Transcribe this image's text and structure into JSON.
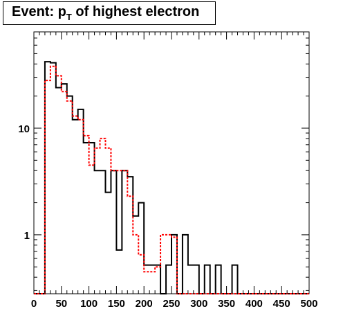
{
  "chart_data": {
    "type": "histogram",
    "title": {
      "prefix": "Event: p",
      "subscript": "T",
      "suffix": " of highest electron"
    },
    "xlabel": "",
    "ylabel": "",
    "xlim": [
      0,
      500
    ],
    "ylim": [
      0.28,
      80
    ],
    "yscale": "log",
    "bin_width": 10,
    "x_ticks": [
      0,
      50,
      100,
      150,
      200,
      250,
      300,
      350,
      400,
      450,
      500
    ],
    "x_tick_labels": [
      "0",
      "50",
      "100",
      "150",
      "200",
      "250",
      "300",
      "350",
      "400",
      "450",
      "500"
    ],
    "y_ticks": [
      1,
      10
    ],
    "y_tick_labels": [
      "1",
      "10"
    ],
    "series": [
      {
        "style": "solid",
        "color": "#000000",
        "values": [
          0,
          0,
          42,
          41,
          24,
          26,
          20,
          12,
          15,
          7.3,
          7.3,
          4,
          4,
          2.5,
          4,
          0.72,
          4,
          3.5,
          1.5,
          2,
          0.52,
          0.52,
          0.52,
          0,
          0.52,
          1,
          0,
          1,
          0.52,
          0.52,
          0.28,
          0.52,
          0.28,
          0.52,
          0.28,
          0.28,
          0.52,
          0.28,
          0.28,
          0.28,
          0.28,
          0.28,
          0.28,
          0.28,
          0.28,
          0.28,
          0.28,
          0.28,
          0.28,
          0.28
        ]
      },
      {
        "style": "dashed",
        "color": "#ff0000",
        "values": [
          0,
          0,
          28,
          38,
          31,
          22,
          18,
          13,
          12,
          8.5,
          4.5,
          6.5,
          8,
          6.5,
          4,
          4,
          4,
          2.3,
          1,
          0.65,
          0.45,
          0.45,
          0.5,
          1,
          1,
          0.95,
          0.28,
          0.28,
          0.28,
          0.28,
          0.28,
          0.28,
          0.28,
          0.28,
          0.28,
          0.28,
          0.28,
          0.28,
          0.28,
          0.28,
          0.28,
          0.28,
          0.28,
          0.28,
          0.28,
          0.28,
          0.28,
          0.28,
          0.28,
          0.28
        ]
      }
    ]
  }
}
